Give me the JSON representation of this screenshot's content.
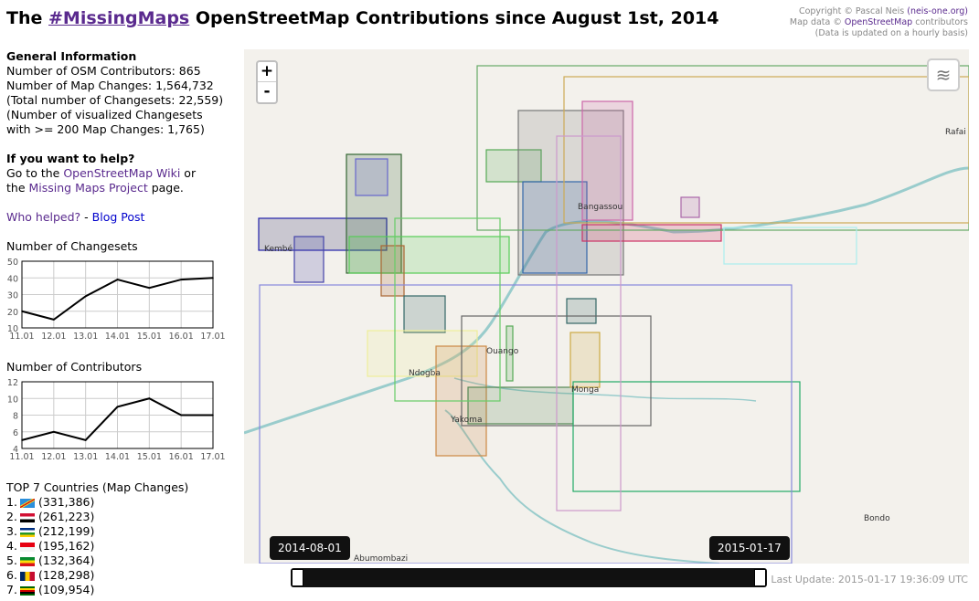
{
  "header": {
    "title_prefix": "The ",
    "title_link": "#MissingMaps",
    "title_suffix": " OpenStreetMap Contributions since August 1st, 2014"
  },
  "copyright": {
    "line1_prefix": "Copyright © Pascal Neis ",
    "line1_link": "(neis-one.org)",
    "line2_prefix": "Map data © ",
    "line2_link": "OpenStreetMap",
    "line2_suffix": " contributors",
    "line3": "(Data is updated on a hourly basis)"
  },
  "general": {
    "heading": "General Information",
    "lines": [
      "Number of OSM Contributors: 865",
      "Number of Map Changes: 1,564,732",
      "(Total number of Changesets: 22,559)",
      "(Number of visualized Changesets",
      "with >= 200 Map Changes: 1,765)"
    ]
  },
  "help": {
    "heading": "If you want to help?",
    "l1_prefix": "Go to the ",
    "l1_link": "OpenStreetMap Wiki",
    "l1_suffix": " or",
    "l2_prefix": "the ",
    "l2_link": "Missing Maps Project",
    "l2_suffix": " page.",
    "who": "Who helped?",
    "sep": " - ",
    "blog": "Blog Post"
  },
  "chart_data": [
    {
      "type": "line",
      "title": "Number of Changesets",
      "categories": [
        "11.01",
        "12.01",
        "13.01",
        "14.01",
        "15.01",
        "16.01",
        "17.01"
      ],
      "values": [
        20,
        15,
        29,
        39,
        34,
        39,
        40
      ],
      "ylim": [
        10,
        50
      ],
      "yticks": [
        10,
        20,
        30,
        40,
        50
      ],
      "grid": true
    },
    {
      "type": "line",
      "title": "Number of Contributors",
      "categories": [
        "11.01",
        "12.01",
        "13.01",
        "14.01",
        "15.01",
        "16.01",
        "17.01"
      ],
      "values": [
        5,
        6,
        5,
        9,
        10,
        8,
        8
      ],
      "ylim": [
        4,
        12
      ],
      "yticks": [
        4,
        6,
        8,
        10,
        12
      ],
      "grid": true
    }
  ],
  "countries": {
    "heading": "TOP 7 Countries (Map Changes)",
    "items": [
      {
        "rank": "1.",
        "flag": "flag-dr-congo",
        "value": "(331,386)"
      },
      {
        "rank": "2.",
        "flag": "flag-sudan",
        "value": "(261,223)"
      },
      {
        "rank": "3.",
        "flag": "flag-central-african-republic",
        "value": "(212,199)"
      },
      {
        "rank": "4.",
        "flag": "flag-indonesia",
        "value": "(195,162)"
      },
      {
        "rank": "5.",
        "flag": "flag-ethiopia",
        "value": "(132,364)"
      },
      {
        "rank": "6.",
        "flag": "flag-chad",
        "value": "(128,298)"
      },
      {
        "rank": "7.",
        "flag": "flag-zimbabwe",
        "value": "(109,954)"
      }
    ]
  },
  "map": {
    "zoom_in": "+",
    "zoom_out": "-",
    "towns": [
      "Bangassou",
      "Rafai",
      "Kembé",
      "Ouango",
      "Ndogba",
      "Monga",
      "Yakoma",
      "Bondo",
      "Abumombazi"
    ]
  },
  "timeline": {
    "start": "2014-08-01",
    "end": "2015-01-17",
    "last_update": "Last Update: 2015-01-17 19:36:09 UTC"
  }
}
